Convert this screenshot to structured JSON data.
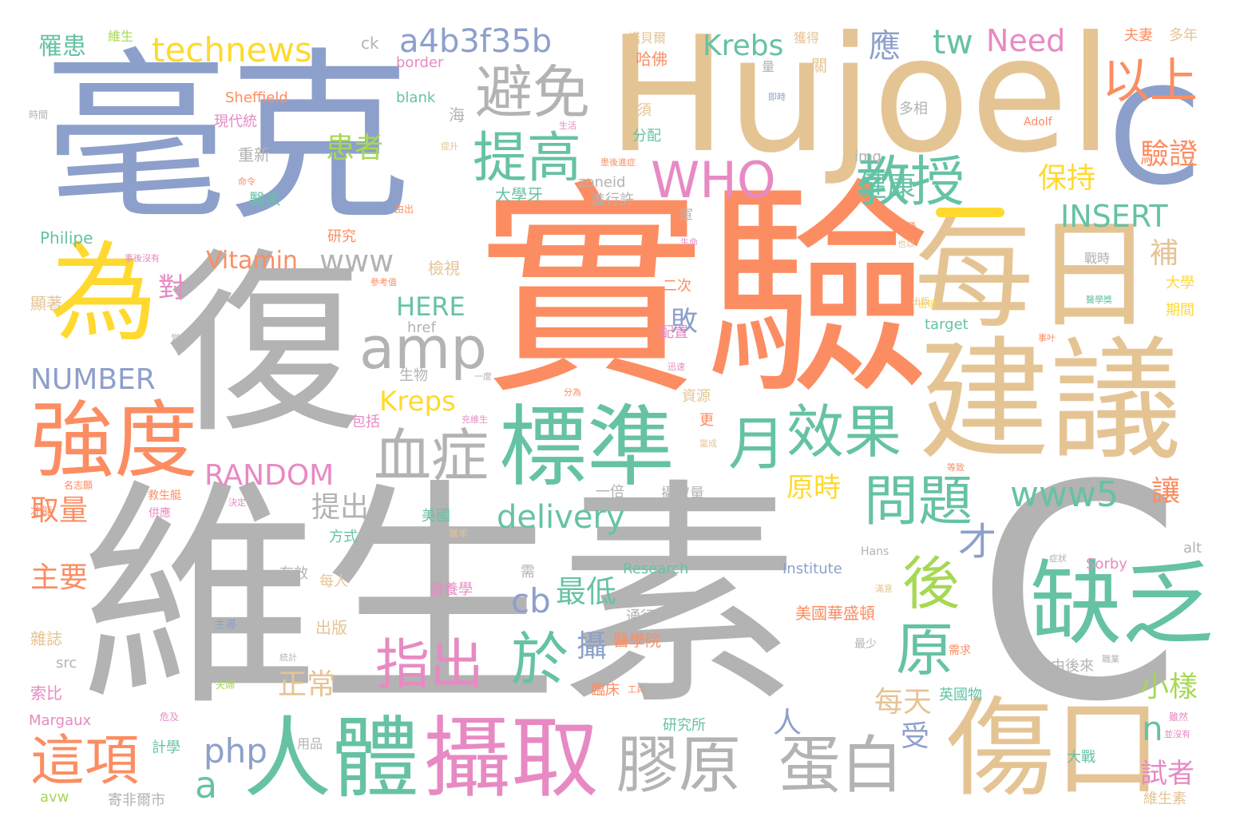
{
  "palette": {
    "gray": "#b3b3b3",
    "orange": "#fc8d62",
    "blue": "#8da0cb",
    "tan": "#e5c494",
    "green": "#66c2a5",
    "pink": "#e78ac3",
    "yellow": "#ffd92f",
    "lime": "#a6d854"
  },
  "words": {
    "vitc": "維生素",
    "c_big": "C",
    "shiyan": "實驗",
    "fu": "復",
    "haoke": "毫克",
    "hujoel": "Hujoel",
    "c_mid": "C",
    "meiri": "每日",
    "jianyi": "建議",
    "wei": "為",
    "qiangdu": "強度",
    "biaozhun": "標準",
    "renti": "人體",
    "sheqv": "攝取",
    "shangkou": "傷口",
    "quefa": "缺乏",
    "amp": "amp",
    "xuezheng": "血症",
    "bimian": "避免",
    "tigao": "提高",
    "jiaoshou": "教授",
    "who": "WHO",
    "yishang": "以上",
    "xiaoguo": "效果",
    "yue": "月",
    "wenti": "問題",
    "hou": "後",
    "yuan": "原",
    "jiaoyuan": "膠原",
    "danbai": "蛋白",
    "zhichu": "指出",
    "yu": "於",
    "zhexiang": "這項",
    "technews": "technews",
    "a4b": "a4b3f35b",
    "tw": "tw",
    "need": "Need",
    "ying": "應",
    "krebs": "Krebs",
    "www": "www",
    "www5": "www5",
    "vitamin": "Vitamin",
    "insert": "INSERT",
    "number": "NUMBER",
    "random": "RANDOM",
    "delivery": "delivery",
    "here": "HERE",
    "kreps": "Kreps",
    "huanzhe": "患者",
    "jiankang": "健康",
    "baochi": "保持",
    "yanzheng": "驗證",
    "bu": "補",
    "cb": "cb",
    "php": "php",
    "a": "a",
    "cai": "才",
    "n": "n",
    "zuidi": "最低",
    "tichu": "提出",
    "quliang": "取量",
    "zhuyao": "主要",
    "zhengchang": "正常",
    "meitian": "每天",
    "xiaoyang": "小樣",
    "shizhe": "試者",
    "rang": "讓",
    "yuanshi": "原時",
    "ren": "人",
    "shou": "受",
    "she": "攝",
    "dui": "對",
    "bai": "敗",
    "luohuan": "罹患",
    "weisheng_s": "維生",
    "ck": "ck",
    "border": "border",
    "sheffield": "Sheffield",
    "xiandaitong": "現代統",
    "shijian": "時間",
    "chongxin": "重新",
    "yixi": "醫系",
    "philipe": "Philipe",
    "yanjiu": "研究",
    "xianzhu": "顯著",
    "blank": "blank",
    "hai": "海",
    "jiancha": "檢視",
    "dangchu": "當初",
    "img": "img",
    "href": "href",
    "shengwu": "生物",
    "ziyuan": "資源",
    "baokuo": "包括",
    "peizhi": "配置",
    "gong": "更",
    "daxueya": "大學牙",
    "zoneid": "zoneid",
    "jinxingxu": "進行許",
    "fenpei": "分配",
    "bixu": "必須",
    "hafo": "哈佛",
    "nuobeier": "諾貝爾",
    "huode": "獲得",
    "liang": "量",
    "guan": "關",
    "duoxiang": "多相",
    "fuqi": "夫妻",
    "duonian": "多年",
    "adolf": "Adolf",
    "daxue": "大學",
    "qijian": "期間",
    "target": "target",
    "zhanshi": "戰時",
    "ziji": "資極",
    "jun": "軍",
    "ercil": "二次",
    "yibei": "一倍",
    "sheqvliang": "攝取量",
    "meiguo": "美國",
    "fangshi": "方式",
    "youxiao": "有效",
    "meiren": "每人",
    "yingyangxue": "營養學",
    "xu": "需",
    "research": "Research",
    "institute": "Institute",
    "hans": "Hans",
    "sorby": "Sorby",
    "alt": "alt",
    "meiguohua": "美國華盛頓",
    "tongxing": "通行",
    "yixueyuan": "醫學院",
    "linchuang": "臨床",
    "yanjiusuo": "研究所",
    "yingguowu": "英國物",
    "youhoulai": "由後來",
    "dazhan": "大戰",
    "weishengsu_s": "維生素",
    "jihua": "計學",
    "chuban": "出版",
    "zazhi": "雜誌",
    "src": "src",
    "suobi": "索比",
    "margaux": "Margaux",
    "avw": "avw",
    "yongpin": "用品",
    "xingfeierfei": "寄非爾市",
    "zuishao": "最少",
    "shengming": "生命",
    "tiny1": "一度",
    "tiny2": "分為",
    "tiny3": "充維生",
    "tiny4": "參考值",
    "tiny5": "救生艇",
    "tiny6": "供應",
    "tiny7": "決定",
    "tiny8": "名志願",
    "tiny9": "才能",
    "tiny10": "主導",
    "tiny11": "夫婦",
    "tiny12": "危及",
    "tiny13": "雖然",
    "tiny14": "並沒有",
    "tiny15": "需求",
    "tiny16": "職業",
    "tiny17": "等致",
    "tiny18": "由出",
    "tiny19": "患後進症",
    "tiny20": "即時",
    "tiny21": "生活",
    "tiny22": "醫學獎",
    "tiny23": "出版",
    "tiny24": "當成",
    "tiny25": "症狀",
    "tiny26": "滿意",
    "tiny27": "當年",
    "tiny28": "提升",
    "tiny29": "命令",
    "tiny30": "迅速",
    "tiny31": "統計",
    "tiny32": "工具",
    "tiny33": "事後沒有",
    "tiny34": "也以",
    "tiny35": "事叶",
    "tiny36": "成為",
    "tiny37": "出現"
  }
}
